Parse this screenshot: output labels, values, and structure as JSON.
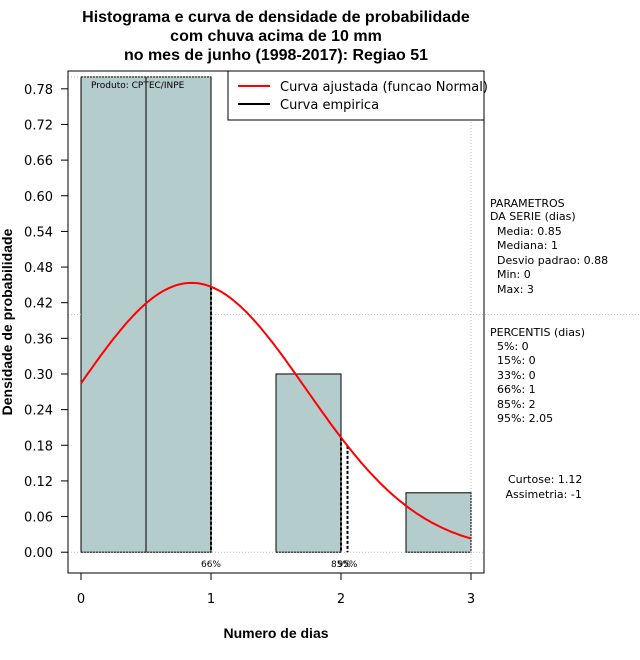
{
  "chart_data": {
    "type": "bar",
    "title_lines": [
      "Histograma e curva de densidade de probabilidade",
      "com chuva acima de 10 mm",
      "no mes de junho (1998-2017): Regiao 51"
    ],
    "xlabel": "Numero de dias",
    "ylabel": "Densidade de probabilidade",
    "xlim": [
      -0.1,
      3.1
    ],
    "ylim": [
      -0.035,
      0.81
    ],
    "x_ticks": [
      0,
      1,
      2,
      3
    ],
    "y_ticks": [
      0.0,
      0.06,
      0.12,
      0.18,
      0.24,
      0.3,
      0.36,
      0.42,
      0.48,
      0.54,
      0.6,
      0.66,
      0.72,
      0.78
    ],
    "y_tick_labels": [
      "0.00",
      "0.06",
      "0.12",
      "0.18",
      "0.24",
      "0.30",
      "0.36",
      "0.42",
      "0.48",
      "0.54",
      "0.60",
      "0.66",
      "0.72",
      "0.78"
    ],
    "bars": [
      {
        "x0": 0.0,
        "x1": 1.0,
        "value": 0.8
      },
      {
        "x0": 1.5,
        "x1": 2.0,
        "value": 0.3
      },
      {
        "x0": 2.5,
        "x1": 3.0,
        "value": 0.1
      }
    ],
    "empirical_line_x": 0.5,
    "normal_curve": {
      "mean": 0.85,
      "sd": 0.88
    },
    "percentile_lines": [
      {
        "x": 1.0,
        "label": "66%"
      },
      {
        "x": 2.0,
        "label": "85%"
      },
      {
        "x": 2.05,
        "label": "95%"
      }
    ],
    "grid_x": [
      3
    ],
    "grid_y": [
      0.4
    ],
    "annotation": "Produto: CPTEC/INPE",
    "legend": {
      "position": "top-right",
      "entries": [
        {
          "label": "Curva ajustada (funcao Normal)",
          "color": "#ff0000"
        },
        {
          "label": "Curva empirica",
          "color": "#000000"
        }
      ]
    },
    "colors": {
      "bar_fill": "#b4cccc",
      "curve": "#ff0000",
      "grid": "#c0c0c0"
    }
  },
  "side_panel": {
    "parametros": [
      "PARAMETROS",
      "DA SERIE (dias)",
      "  Media: 0.85",
      "  Mediana: 1",
      "  Desvio padrao: 0.88",
      "  Min: 0",
      "  Max: 3"
    ],
    "percentis": [
      "PERCENTIS (dias)",
      "  5%: 0",
      "  15%: 0",
      "  33%: 0",
      "  66%: 1",
      "  85%: 2",
      "  95%: 2.05"
    ],
    "shape": [
      "Curtose: 1.12",
      " Assimetria: -1"
    ]
  }
}
